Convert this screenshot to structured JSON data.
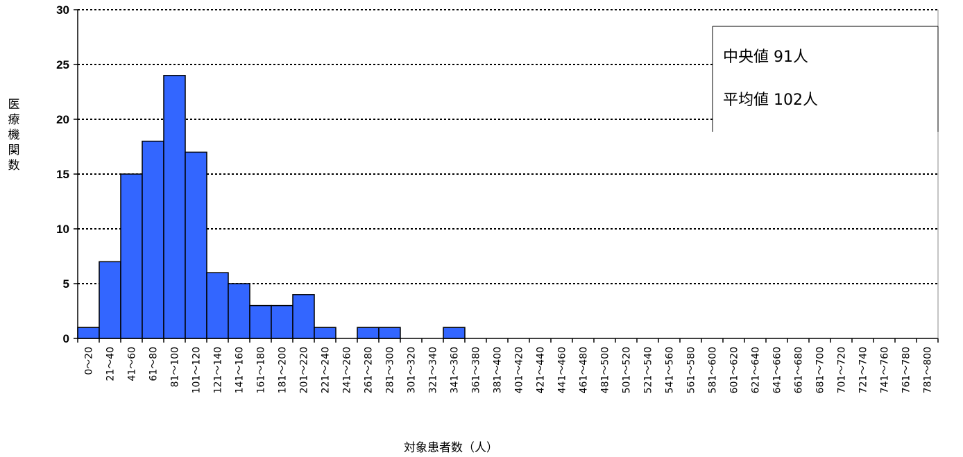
{
  "chart_data": {
    "type": "bar",
    "title": "",
    "xlabel": "対象患者数（人）",
    "ylabel": "医療機関数",
    "ylim": [
      0,
      30
    ],
    "yticks": [
      0,
      5,
      10,
      15,
      20,
      25,
      30
    ],
    "grid": "horizontal-dotted",
    "categories": [
      "0～20",
      "21～40",
      "41～60",
      "61～80",
      "81～100",
      "101～120",
      "121～140",
      "141～160",
      "161～180",
      "181～200",
      "201～220",
      "221～240",
      "241～260",
      "261～280",
      "281～300",
      "301～320",
      "321～340",
      "341～360",
      "361～380",
      "381～400",
      "401～420",
      "421～440",
      "441～460",
      "461～480",
      "481～500",
      "501～520",
      "521～540",
      "541～560",
      "561～580",
      "581～600",
      "601～620",
      "621～640",
      "641～660",
      "661～680",
      "681～700",
      "701～720",
      "721～740",
      "741～760",
      "761～780",
      "781～800"
    ],
    "values": [
      1,
      7,
      15,
      18,
      24,
      17,
      6,
      5,
      3,
      3,
      4,
      1,
      0,
      1,
      1,
      0,
      0,
      1,
      0,
      0,
      0,
      0,
      0,
      0,
      0,
      0,
      0,
      0,
      0,
      0,
      0,
      0,
      0,
      0,
      0,
      0,
      0,
      0,
      0,
      0
    ],
    "bar_color": "#3366ff",
    "annotations": [
      "中央値 91人",
      "平均値 102人"
    ],
    "annotation_placement": "top-right"
  }
}
